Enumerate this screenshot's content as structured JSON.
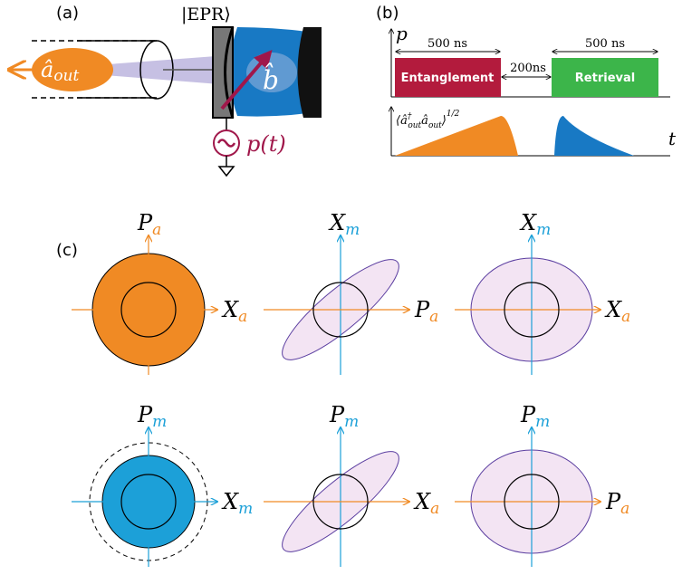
{
  "panel_a": {
    "label": "(a)",
    "state": "|EPR⟩",
    "output": {
      "main": "â",
      "sub": "out"
    },
    "mode": "b̂",
    "drive": "p(t)"
  },
  "panel_b": {
    "label": "(b)",
    "y_axis": "p",
    "x_axis": "t",
    "pulses": [
      {
        "name": "Entanglement",
        "duration": "500 ns"
      },
      {
        "name": "Retrieval",
        "duration": "500 ns"
      }
    ],
    "gap": "200ns",
    "envelope": [
      "⟨â",
      "†",
      "out",
      "â",
      "out",
      "⟩",
      "1/2"
    ]
  },
  "panel_c": {
    "label": "(c)",
    "plots": [
      {
        "vertical": {
          "main": "P",
          "sub": "a"
        },
        "horizontal": {
          "main": "X",
          "sub": "a"
        }
      },
      {
        "vertical": {
          "main": "X",
          "sub": "m"
        },
        "horizontal": {
          "main": "P",
          "sub": "a"
        }
      },
      {
        "vertical": {
          "main": "X",
          "sub": "m"
        },
        "horizontal": {
          "main": "X",
          "sub": "a"
        }
      },
      {
        "vertical": {
          "main": "P",
          "sub": "m"
        },
        "horizontal": {
          "main": "X",
          "sub": "m"
        }
      },
      {
        "vertical": {
          "main": "P",
          "sub": "m"
        },
        "horizontal": {
          "main": "X",
          "sub": "a"
        }
      },
      {
        "vertical": {
          "main": "P",
          "sub": "m"
        },
        "horizontal": {
          "main": "P",
          "sub": "a"
        }
      }
    ]
  }
}
